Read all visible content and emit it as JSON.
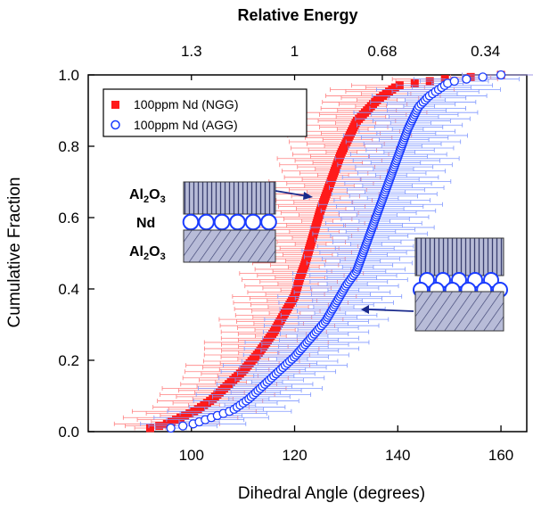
{
  "chart_data": {
    "type": "scatter",
    "title": "",
    "xlabel": "Dihedral Angle (degrees)",
    "ylabel": "Cumulative Fraction",
    "top_axis_label": "Relative Energy",
    "top_ticks": [
      {
        "label": "1.3",
        "x": 100
      },
      {
        "label": "1",
        "x": 120
      },
      {
        "label": "0.68",
        "x": 137
      },
      {
        "label": "0.34",
        "x": 157
      }
    ],
    "xlim": [
      80,
      165
    ],
    "ylim": [
      0.0,
      1.0
    ],
    "x_ticks": [
      100,
      120,
      140,
      160
    ],
    "x_tick_labels": [
      "100",
      "120",
      "140",
      "160"
    ],
    "y_ticks": [
      0.0,
      0.2,
      0.4,
      0.6,
      0.8,
      1.0
    ],
    "y_tick_labels": [
      "0.0",
      "0.2",
      "0.4",
      "0.6",
      "0.8",
      "1.0"
    ],
    "legend_position": "top-left",
    "series": [
      {
        "name": "100ppm Nd (NGG)",
        "marker": "filled-square",
        "color": "#ff1a1a",
        "error_color": "#ff8080",
        "x": [
          92,
          95,
          98,
          101,
          104,
          107,
          110,
          113,
          116,
          118,
          120,
          121,
          122,
          123,
          124,
          125,
          126,
          127,
          128,
          129,
          130,
          131,
          132,
          134,
          136,
          138,
          140,
          145,
          150,
          160
        ],
        "y": [
          0.01,
          0.02,
          0.04,
          0.06,
          0.09,
          0.13,
          0.17,
          0.22,
          0.28,
          0.33,
          0.38,
          0.43,
          0.47,
          0.52,
          0.57,
          0.62,
          0.66,
          0.7,
          0.74,
          0.78,
          0.81,
          0.84,
          0.87,
          0.9,
          0.93,
          0.95,
          0.97,
          0.98,
          0.99,
          1.0
        ]
      },
      {
        "name": "100ppm Nd (AGG)",
        "marker": "open-circle",
        "color": "#1a3cff",
        "error_color": "#8098ff",
        "x": [
          96,
          100,
          104,
          108,
          111,
          114,
          117,
          120,
          123,
          126,
          128,
          130,
          132,
          133,
          134,
          135,
          136,
          137,
          138,
          139,
          140,
          141,
          142,
          143,
          144,
          146,
          148,
          150,
          154,
          160
        ],
        "y": [
          0.01,
          0.02,
          0.04,
          0.06,
          0.09,
          0.13,
          0.17,
          0.21,
          0.26,
          0.31,
          0.36,
          0.41,
          0.45,
          0.49,
          0.53,
          0.57,
          0.61,
          0.65,
          0.69,
          0.73,
          0.77,
          0.81,
          0.85,
          0.88,
          0.91,
          0.94,
          0.96,
          0.98,
          0.99,
          1.0
        ]
      }
    ],
    "inset_labels": {
      "top_layer": "Al",
      "top_layer_sub": "2",
      "top_layer_tail": "O",
      "top_layer_sub2": "3",
      "middle_layer": "Nd",
      "bottom_layer": "Al",
      "bottom_layer_sub": "2",
      "bottom_layer_tail": "O",
      "bottom_layer_sub2": "3"
    }
  }
}
